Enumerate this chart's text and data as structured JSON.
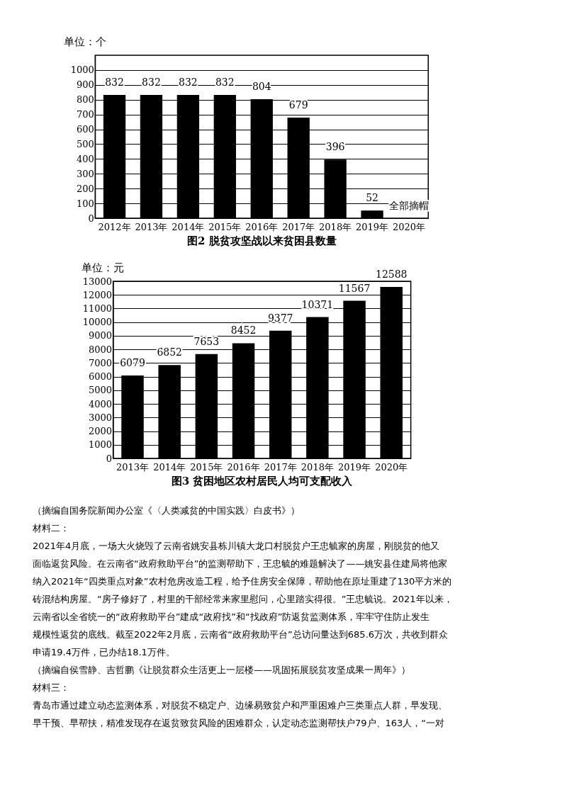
{
  "chart_data": [
    {
      "type": "bar",
      "title": "图2 脱贫攻坚战以来贫困县数量",
      "ylabel": "单位：个",
      "categories": [
        "2012年",
        "2013年",
        "2014年",
        "2015年",
        "2016年",
        "2017年",
        "2018年",
        "2019年",
        "2020年"
      ],
      "values": [
        832,
        832,
        832,
        832,
        804,
        679,
        396,
        52,
        0
      ],
      "value_labels": [
        "832",
        "832",
        "832",
        "832",
        "804",
        "679",
        "396",
        "52",
        "全部摘帽"
      ],
      "color": "#000000",
      "ylim": [
        0,
        1100
      ],
      "yticks": [
        0,
        100,
        200,
        300,
        400,
        500,
        600,
        700,
        800,
        900,
        1000
      ],
      "grid": "y"
    },
    {
      "type": "bar",
      "title": "图3 贫困地区农村居民人均可支配收入",
      "ylabel": "单位：元",
      "categories": [
        "2013年",
        "2014年",
        "2015年",
        "2016年",
        "2017年",
        "2018年",
        "2019年",
        "2020年"
      ],
      "values": [
        6079,
        6852,
        7653,
        8452,
        9377,
        10371,
        11567,
        12588
      ],
      "data_labels": true,
      "color": "#000000",
      "ylim": [
        0,
        13000
      ],
      "yticks": [
        0,
        1000,
        2000,
        3000,
        4000,
        5000,
        6000,
        7000,
        8000,
        9000,
        10000,
        11000,
        12000,
        13000
      ],
      "grid": "y",
      "annotations": [
        "（摘编自国务院新闻办公室《〈人类减贫的中国实践〉白皮书》）",
        "材料二：",
        "2021年4月底，一场大火烧毁了云南省姚安县栋川镇大龙口村脱贫户王忠毓家的房屋，刚脱贫的他又",
        "面临返贫风险。在云南省“政府救助平台”的监测帮助下，王忠毓的难题解决了——姚安县住建局将他家",
        "纳入2021年“四类重点对象”农村危房改造工程，给予住房安全保障，帮助他在原址重建了130平方米的",
        "砖混结构房屋。“房子修好了，村里的干部经常来家里慰问，心里踏实得很。”王忠毓说。2021年以来，",
        "云南省以全省统一的“政府救助平台”建成“政府找”和“找政府”防返贫监测体系，牢牢守住防止发生",
        "规模性返贫的底线。截至2022年2月底，云南省“政府救助平台”总访问量达到685.6万次，共收到群众",
        "申请19.4万件，已办结18.1万件。",
        "（摘编自侯雪静、吉哲鹏《让脱贫群众生活更上一层楼——巩固拓展脱贫攻坚成果一周年》）",
        "材料三：",
        "青岛市通过建立动态监测体系，对脱贫不稳定户、边缘易致贫户和严重困难户三类重点人群，早发现、",
        "早干预、早帮扶，精准发现存在返贫致贫风险的困难群众，认定动态监测帮扶户79户、163人，“一对"
      ]
    }
  ]
}
